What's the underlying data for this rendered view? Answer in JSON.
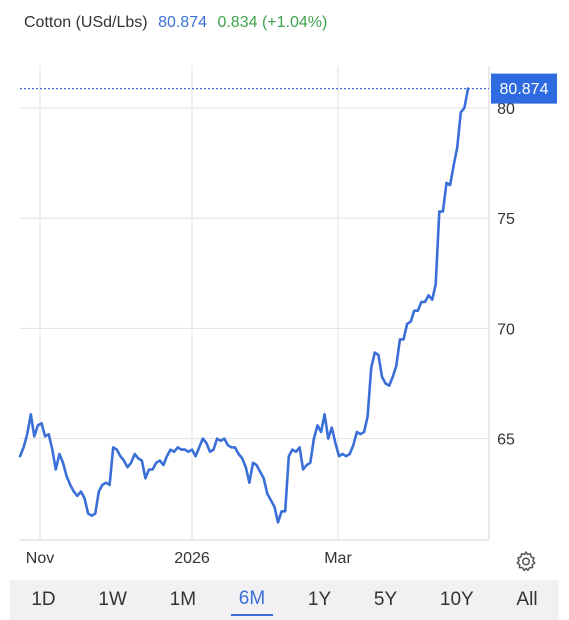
{
  "header": {
    "name": "Cotton (USd/Lbs)",
    "price": "80.874",
    "change": "0.834 (+1.04%)"
  },
  "colors": {
    "line": "#3a6fd8",
    "positive": "#3fa34d",
    "badge_bg": "#2f6be0",
    "grid": "#e2e2e2"
  },
  "chart_data": {
    "type": "line",
    "title": "Cotton (USd/Lbs)",
    "xlabel": "",
    "ylabel": "",
    "x_tick_labels": [
      "Nov",
      "2026",
      "Mar"
    ],
    "y_ticks": [
      65,
      70,
      75,
      80
    ],
    "y_tick_labels": [
      "65",
      "70",
      "75",
      "80"
    ],
    "ylim": [
      60.4,
      81.9
    ],
    "last_value": 80.874,
    "last_value_label": "80.874",
    "grid": true,
    "series": [
      {
        "values": [
          64.2,
          64.6,
          65.2,
          66.1,
          65.1,
          65.6,
          65.7,
          65.1,
          65.2,
          64.5,
          63.6,
          64.3,
          63.9,
          63.3,
          62.9,
          62.6,
          62.4,
          62.6,
          62.3,
          61.6,
          61.5,
          61.6,
          62.6,
          62.9,
          63.0,
          62.9,
          64.6,
          64.5,
          64.2,
          64.0,
          63.7,
          63.9,
          64.3,
          64.1,
          64.0,
          63.2,
          63.6,
          63.6,
          63.9,
          64.0,
          63.8,
          64.2,
          64.5,
          64.4,
          64.6,
          64.5,
          64.5,
          64.4,
          64.5,
          64.2,
          64.6,
          65.0,
          64.8,
          64.4,
          64.5,
          65.0,
          64.9,
          65.0,
          64.7,
          64.6,
          64.6,
          64.3,
          64.1,
          63.7,
          63.0,
          63.9,
          63.8,
          63.5,
          63.2,
          62.5,
          62.2,
          61.9,
          61.2,
          61.7,
          61.7,
          64.2,
          64.5,
          64.4,
          64.6,
          63.6,
          63.8,
          63.9,
          65.0,
          65.6,
          65.3,
          66.1,
          65.0,
          65.5,
          64.8,
          64.2,
          64.3,
          64.2,
          64.3,
          64.7,
          65.3,
          65.2,
          65.3,
          66.0,
          68.2,
          68.9,
          68.8,
          67.8,
          67.5,
          67.4,
          67.8,
          68.3,
          69.5,
          69.5,
          70.2,
          70.3,
          70.8,
          70.8,
          71.2,
          71.2,
          71.5,
          71.3,
          72.0,
          75.3,
          75.3,
          76.6,
          76.5,
          77.4,
          78.2,
          79.8,
          80.0,
          80.874
        ]
      }
    ]
  },
  "range_buttons": [
    {
      "label": "1D"
    },
    {
      "label": "1W"
    },
    {
      "label": "1M"
    },
    {
      "label": "6M",
      "active": true
    },
    {
      "label": "1Y"
    },
    {
      "label": "5Y"
    },
    {
      "label": "10Y"
    },
    {
      "label": "All"
    }
  ],
  "icons": {
    "settings": "gear-icon"
  }
}
